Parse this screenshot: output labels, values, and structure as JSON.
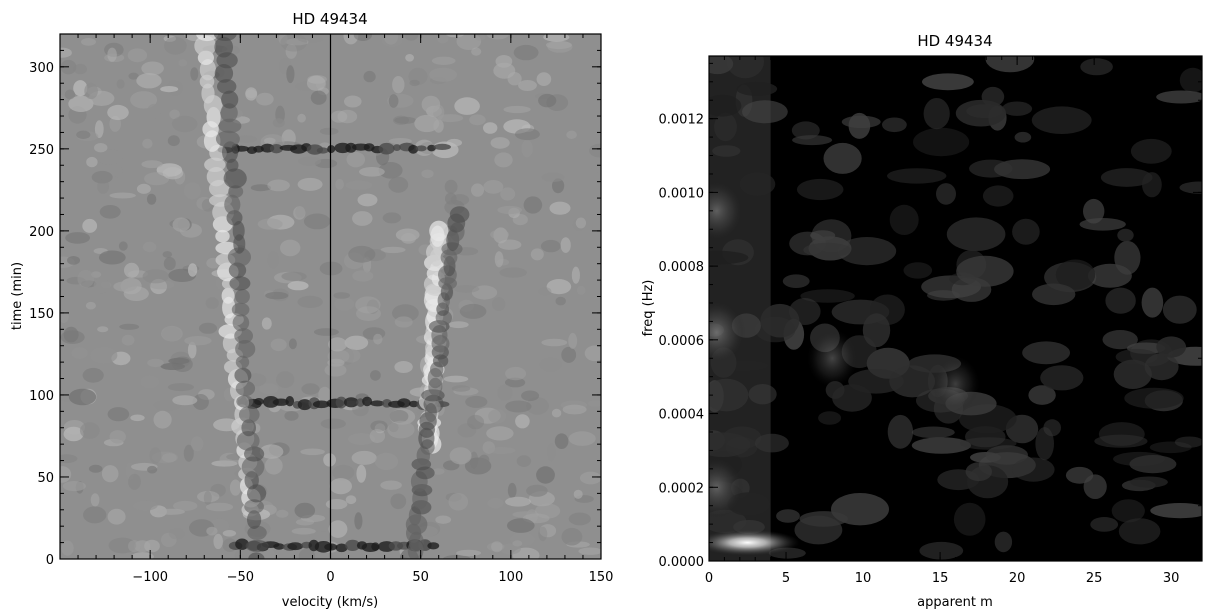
{
  "chart_data": [
    {
      "type": "heatmap",
      "title": "HD 49434",
      "xlabel": "velocity (km/s)",
      "ylabel": "time (min)",
      "xlim": [
        -150,
        150
      ],
      "ylim": [
        0,
        320
      ],
      "x_ticks": [
        -100,
        -50,
        0,
        50,
        100,
        150
      ],
      "x_tick_labels": [
        "−100",
        "−50",
        "0",
        "50",
        "100",
        "150"
      ],
      "y_ticks": [
        0,
        50,
        100,
        150,
        200,
        250,
        300
      ],
      "y_tick_labels": [
        "0",
        "50",
        "100",
        "150",
        "200",
        "250",
        "300"
      ],
      "colormap": "grayscale",
      "reference_line_x": 0,
      "features": [
        {
          "kind": "dark-band",
          "time": 250,
          "velocity_range": [
            -60,
            60
          ]
        },
        {
          "kind": "dark-band",
          "time": 95,
          "velocity_range": [
            -50,
            60
          ]
        },
        {
          "kind": "dark-band",
          "time": 8,
          "velocity_range": [
            -55,
            55
          ]
        },
        {
          "kind": "bright-streak",
          "velocity_start": -45,
          "time_start": 30,
          "velocity_end": -70,
          "time_end": 320
        },
        {
          "kind": "bright-streak",
          "velocity_start": 55,
          "time_start": 70,
          "velocity_end": 60,
          "time_end": 200
        },
        {
          "kind": "dark-streak",
          "velocity_start": -40,
          "time_start": 0,
          "velocity_end": -60,
          "time_end": 320
        },
        {
          "kind": "dark-streak",
          "velocity_start": 45,
          "time_start": 0,
          "velocity_end": 70,
          "time_end": 210
        }
      ]
    },
    {
      "type": "heatmap",
      "title": "HD 49434",
      "xlabel": "apparent m",
      "ylabel": "freq (Hz)",
      "xlim": [
        0,
        32
      ],
      "ylim": [
        0,
        0.00137
      ],
      "x_ticks": [
        0,
        5,
        10,
        15,
        20,
        25,
        30
      ],
      "x_tick_labels": [
        "0",
        "5",
        "10",
        "15",
        "20",
        "25",
        "30"
      ],
      "y_ticks": [
        0,
        0.0002,
        0.0004,
        0.0006,
        0.0008,
        0.001,
        0.0012
      ],
      "y_tick_labels": [
        "0.0000",
        "0.0002",
        "0.0004",
        "0.0006",
        "0.0008",
        "0.0010",
        "0.0012"
      ],
      "colormap": "grayscale",
      "peaks": [
        {
          "m": 2.5,
          "freq": 5e-05,
          "intensity": 1.0
        },
        {
          "m": 0.5,
          "freq": 0.00062,
          "intensity": 0.55
        },
        {
          "m": 0.5,
          "freq": 0.00095,
          "intensity": 0.45
        },
        {
          "m": 0.5,
          "freq": 0.0002,
          "intensity": 0.45
        },
        {
          "m": 8,
          "freq": 0.00055,
          "intensity": 0.35
        },
        {
          "m": 16,
          "freq": 0.00048,
          "intensity": 0.3
        }
      ]
    }
  ]
}
